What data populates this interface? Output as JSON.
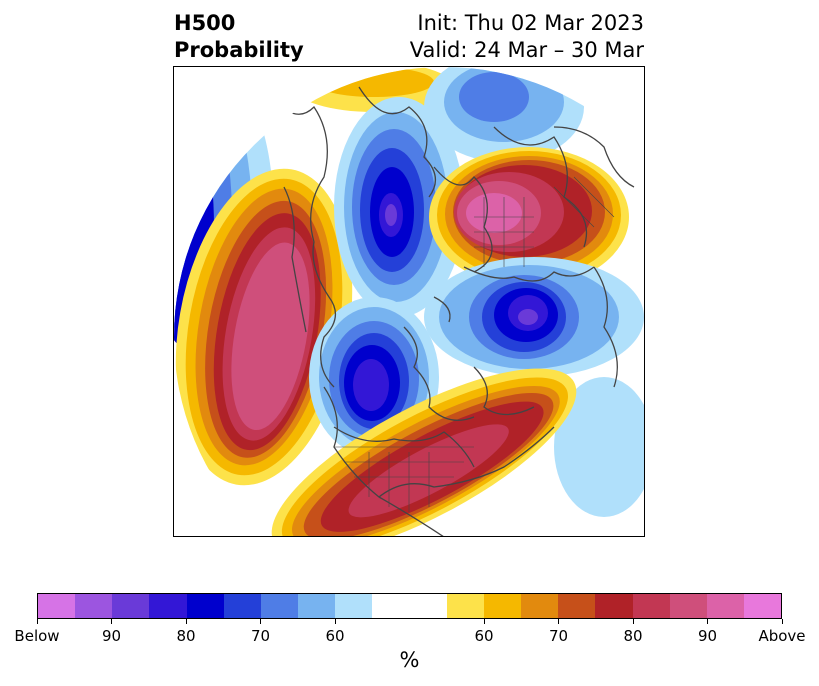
{
  "title": {
    "line1": "H500",
    "line2": "Probability",
    "init": "Init: Thu 02 Mar 2023",
    "valid": "Valid: 24 Mar – 30 Mar"
  },
  "map": {
    "projection": "north-polar-stereographic",
    "field": "500 hPa height anomaly probability",
    "anomalies": [
      {
        "kind": "above",
        "region": "North Pacific / Gulf of Alaska",
        "peak": "above 90"
      },
      {
        "kind": "below",
        "region": "Hudson Bay / central Canada",
        "peak": "90"
      },
      {
        "kind": "below",
        "region": "Barents Sea / northern Russia",
        "peak": "90"
      },
      {
        "kind": "below",
        "region": "Central Siberia",
        "peak": "90"
      },
      {
        "kind": "above",
        "region": "Western North Atlantic / eastern US",
        "peak": "80"
      },
      {
        "kind": "above",
        "region": "East Asia / Japan",
        "peak": "above 90"
      }
    ]
  },
  "colorbar": {
    "colors": [
      "#d673e6",
      "#9c55e0",
      "#6a3ad8",
      "#3317d6",
      "#0000cd",
      "#2440d8",
      "#4f7de6",
      "#77b3f0",
      "#b0e0fb",
      "#ffffff",
      "#ffffff",
      "#fde24a",
      "#f5b800",
      "#e28a0e",
      "#c6501a",
      "#b02228",
      "#c23753",
      "#cf4f7b",
      "#dc62a8",
      "#e878dc"
    ],
    "tick_labels": [
      "Below",
      "90",
      "80",
      "70",
      "60",
      "60",
      "70",
      "80",
      "90",
      "Above"
    ],
    "unit": "%"
  }
}
